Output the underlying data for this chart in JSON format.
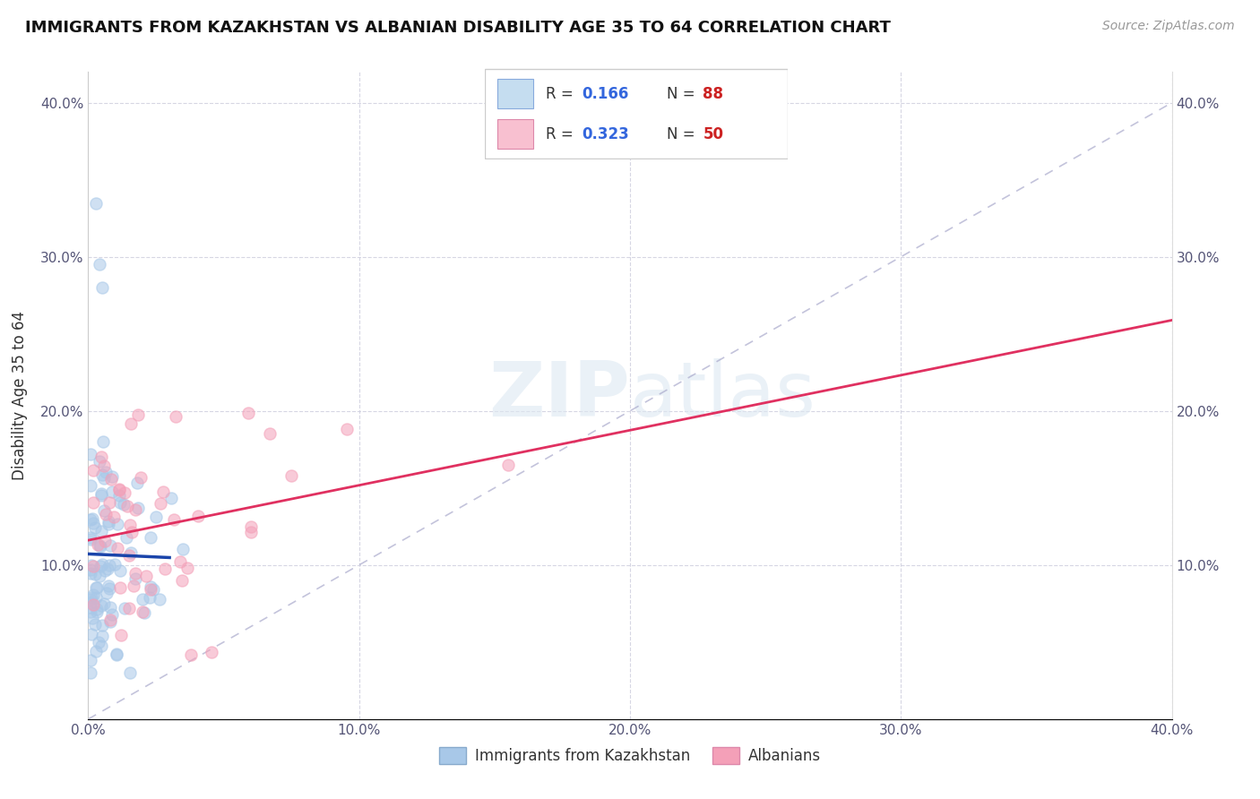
{
  "title": "IMMIGRANTS FROM KAZAKHSTAN VS ALBANIAN DISABILITY AGE 35 TO 64 CORRELATION CHART",
  "source": "Source: ZipAtlas.com",
  "ylabel": "Disability Age 35 to 64",
  "xlim": [
    0.0,
    0.4
  ],
  "ylim": [
    0.0,
    0.42
  ],
  "kazakhstan_R": 0.166,
  "kazakhstan_N": 88,
  "albanian_R": 0.323,
  "albanian_N": 50,
  "kazakhstan_color": "#a8c8e8",
  "albanian_color": "#f4a0b8",
  "kazakhstan_line_color": "#1a44aa",
  "albanian_line_color": "#e03060",
  "background_color": "#ffffff",
  "scatter_alpha": 0.55,
  "scatter_size": 90,
  "watermark_text": "ZIPatlas",
  "legend_label_kaz": "Immigrants from Kazakhstan",
  "legend_label_alb": "Albanians"
}
